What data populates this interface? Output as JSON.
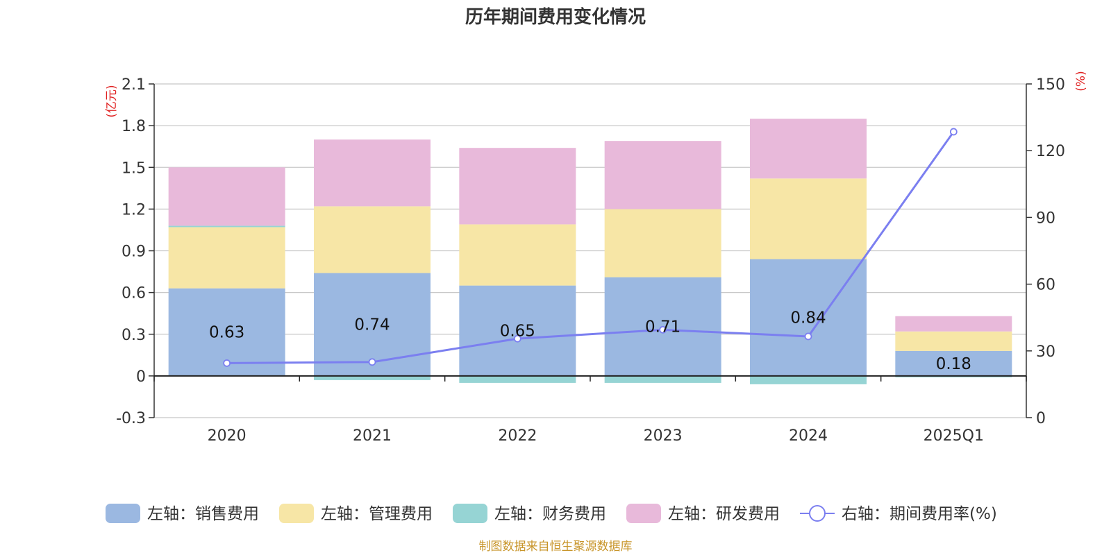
{
  "chart_data": {
    "type": "bar",
    "title": "历年期间费用变化情况",
    "categories": [
      "2020",
      "2021",
      "2022",
      "2023",
      "2024",
      "2025Q1"
    ],
    "y_left": {
      "unit": "(亿元)",
      "min": -0.3,
      "max": 2.1,
      "ticks": [
        "-0.3",
        "0",
        "0.3",
        "0.6",
        "0.9",
        "1.2",
        "1.5",
        "1.8",
        "2.1"
      ]
    },
    "y_right": {
      "unit": "(%)",
      "min": 0,
      "max": 150,
      "ticks": [
        "0",
        "30",
        "60",
        "90",
        "120",
        "150"
      ]
    },
    "series": [
      {
        "name": "左轴：销售费用",
        "axis": "left",
        "type": "stacked-bar",
        "color": "#9bb8e1",
        "values": [
          0.63,
          0.74,
          0.65,
          0.71,
          0.84,
          0.18
        ],
        "labels": [
          "0.63",
          "0.74",
          "0.65",
          "0.71",
          "0.84",
          "0.18"
        ]
      },
      {
        "name": "左轴：管理费用",
        "axis": "left",
        "type": "stacked-bar",
        "color": "#f7e6a6",
        "values": [
          0.44,
          0.48,
          0.44,
          0.49,
          0.58,
          0.14
        ]
      },
      {
        "name": "左轴：财务费用",
        "axis": "left",
        "type": "stacked-bar",
        "color": "#96d4d4",
        "values": [
          0.01,
          -0.03,
          -0.05,
          -0.05,
          -0.06,
          -0.01
        ]
      },
      {
        "name": "左轴：研发费用",
        "axis": "left",
        "type": "stacked-bar",
        "color": "#e8b9da",
        "values": [
          0.42,
          0.48,
          0.55,
          0.49,
          0.43,
          0.11
        ]
      },
      {
        "name": "右轴：期间费用率(%)",
        "axis": "right",
        "type": "line",
        "color": "#7b7ff0",
        "values": [
          24.5,
          25,
          35.5,
          39.5,
          36.5,
          128.5
        ]
      }
    ],
    "grid": true,
    "legend": "bottom",
    "source": "制图数据来自恒生聚源数据库"
  }
}
